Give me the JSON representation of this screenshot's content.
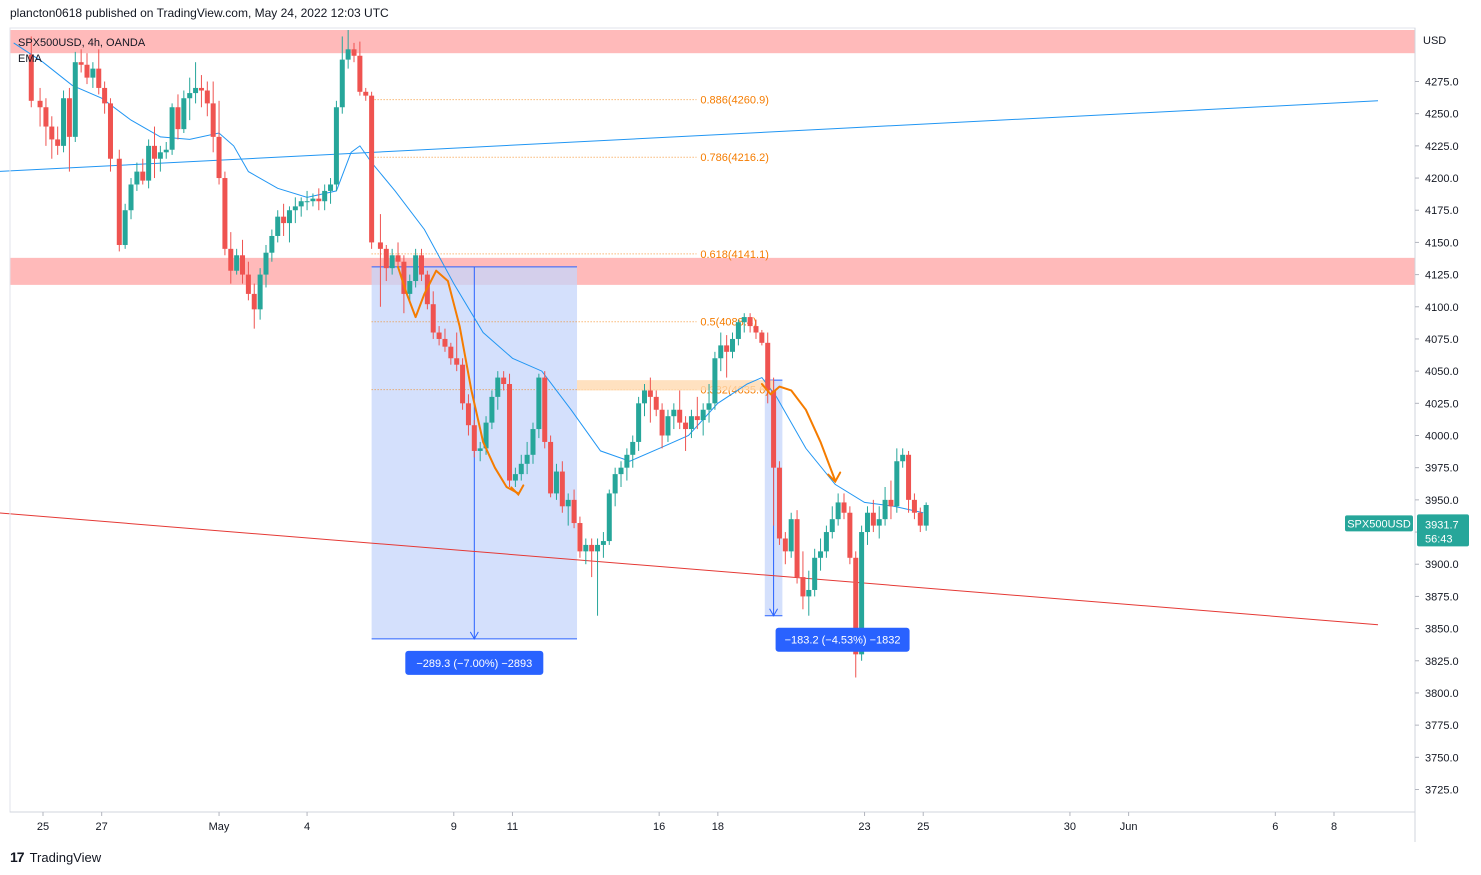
{
  "header": {
    "publisher": "plancton0618 published on TradingView.com, May 24, 2022 12:03 UTC"
  },
  "legend": {
    "symbol": "SPX500USD, 4h, OANDA",
    "indicator": "EMA"
  },
  "footer": {
    "brand": "TradingView",
    "logo": "17"
  },
  "colors": {
    "up": "#26a69a",
    "down": "#ef5350",
    "ema": "#2196f3",
    "zone": "#ffb3b3",
    "fib": "#f57c00",
    "measure": "#2962ff"
  },
  "chart_data": {
    "type": "candlestick",
    "symbol": "SPX500USD",
    "timeframe": "4h",
    "source": "OANDA",
    "y_axis": {
      "unit": "USD",
      "ticks": [
        4275.0,
        4250.0,
        4225.0,
        4200.0,
        4175.0,
        4150.0,
        4125.0,
        4100.0,
        4075.0,
        4050.0,
        4025.0,
        4000.0,
        3975.0,
        3950.0,
        3925.0,
        3900.0,
        3875.0,
        3850.0,
        3825.0,
        3800.0,
        3775.0,
        3750.0,
        3725.0
      ],
      "tick_labels": [
        "4275.0",
        "4250.0",
        "4225.0",
        "4200.0",
        "4175.0",
        "4150.0",
        "4125.0",
        "4100.0",
        "4075.0",
        "4050.0",
        "4025.0",
        "4000.0",
        "3975.0",
        "3950.0",
        "3925.0",
        "3900.0",
        "3875.0",
        "3850.0",
        "3825.0",
        "3800.0",
        "3775.0",
        "3750.0",
        "3725.0"
      ],
      "range": [
        3707,
        4322
      ]
    },
    "x_axis": {
      "labels": [
        "25",
        "27",
        "May",
        "4",
        "9",
        "11",
        "16",
        "18",
        "23",
        "25",
        "30",
        "Jun",
        "6",
        "8"
      ],
      "label_days": [
        -6,
        -4,
        0,
        3,
        8,
        10,
        15,
        17,
        22,
        24,
        29,
        31,
        36,
        38
      ],
      "range_days": [
        -7.6,
        39.5
      ]
    },
    "candles": [
      [
        -6.4,
        4296,
        4310,
        4255,
        4260
      ],
      [
        -6.1,
        4260,
        4270,
        4240,
        4255
      ],
      [
        -5.9,
        4255,
        4262,
        4225,
        4240
      ],
      [
        -5.7,
        4240,
        4248,
        4215,
        4230
      ],
      [
        -5.5,
        4230,
        4240,
        4218,
        4225
      ],
      [
        -5.3,
        4225,
        4268,
        4220,
        4262
      ],
      [
        -5.1,
        4262,
        4270,
        4205,
        4232
      ],
      [
        -4.9,
        4232,
        4298,
        4228,
        4290
      ],
      [
        -4.7,
        4290,
        4300,
        4282,
        4288
      ],
      [
        -4.5,
        4288,
        4297,
        4273,
        4278
      ],
      [
        -4.3,
        4278,
        4290,
        4270,
        4285
      ],
      [
        -4.1,
        4285,
        4300,
        4265,
        4270
      ],
      [
        -3.9,
        4270,
        4275,
        4250,
        4258
      ],
      [
        -3.7,
        4258,
        4262,
        4205,
        4215
      ],
      [
        -3.4,
        4215,
        4222,
        4143,
        4148
      ],
      [
        -3.2,
        4148,
        4180,
        4145,
        4175
      ],
      [
        -3.0,
        4175,
        4200,
        4168,
        4195
      ],
      [
        -2.8,
        4195,
        4212,
        4190,
        4205
      ],
      [
        -2.6,
        4205,
        4215,
        4195,
        4198
      ],
      [
        -2.4,
        4198,
        4230,
        4192,
        4225
      ],
      [
        -2.2,
        4225,
        4240,
        4200,
        4215
      ],
      [
        -2.0,
        4215,
        4225,
        4205,
        4220
      ],
      [
        -1.8,
        4220,
        4228,
        4215,
        4222
      ],
      [
        -1.6,
        4222,
        4258,
        4218,
        4255
      ],
      [
        -1.4,
        4255,
        4265,
        4230,
        4238
      ],
      [
        -1.2,
        4238,
        4268,
        4235,
        4262
      ],
      [
        -1.0,
        4262,
        4278,
        4245,
        4266
      ],
      [
        -0.8,
        4266,
        4290,
        4258,
        4270
      ],
      [
        -0.6,
        4270,
        4280,
        4255,
        4268
      ],
      [
        -0.4,
        4268,
        4275,
        4248,
        4258
      ],
      [
        -0.2,
        4258,
        4275,
        4220,
        4232
      ],
      [
        0.0,
        4232,
        4260,
        4195,
        4200
      ],
      [
        0.2,
        4200,
        4205,
        4140,
        4145
      ],
      [
        0.4,
        4145,
        4158,
        4118,
        4128
      ],
      [
        0.6,
        4128,
        4145,
        4125,
        4140
      ],
      [
        0.8,
        4140,
        4152,
        4118,
        4125
      ],
      [
        1.0,
        4125,
        4135,
        4105,
        4110
      ],
      [
        1.2,
        4110,
        4118,
        4083,
        4098
      ],
      [
        1.4,
        4098,
        4130,
        4090,
        4125
      ],
      [
        1.6,
        4125,
        4148,
        4115,
        4142
      ],
      [
        1.8,
        4142,
        4160,
        4135,
        4155
      ],
      [
        2.0,
        4155,
        4175,
        4150,
        4170
      ],
      [
        2.2,
        4170,
        4180,
        4155,
        4165
      ],
      [
        2.4,
        4165,
        4178,
        4150,
        4175
      ],
      [
        2.6,
        4175,
        4185,
        4165,
        4178
      ],
      [
        2.8,
        4178,
        4185,
        4170,
        4182
      ],
      [
        3.0,
        4182,
        4190,
        4175,
        4182
      ],
      [
        3.2,
        4182,
        4188,
        4178,
        4184
      ],
      [
        3.4,
        4184,
        4192,
        4175,
        4182
      ],
      [
        3.6,
        4182,
        4195,
        4175,
        4190
      ],
      [
        3.8,
        4190,
        4200,
        4180,
        4195
      ],
      [
        4.0,
        4195,
        4260,
        4190,
        4255
      ],
      [
        4.2,
        4255,
        4310,
        4250,
        4292
      ],
      [
        4.4,
        4292,
        4315,
        4285,
        4300
      ],
      [
        4.6,
        4300,
        4305,
        4290,
        4295
      ],
      [
        4.8,
        4295,
        4306,
        4264,
        4267
      ],
      [
        5.0,
        4267,
        4270,
        4260,
        4264
      ],
      [
        5.2,
        4264,
        4267,
        4145,
        4150
      ],
      [
        5.5,
        4150,
        4172,
        4100,
        4145
      ],
      [
        5.7,
        4145,
        4148,
        4120,
        4130
      ],
      [
        5.9,
        4130,
        4145,
        4125,
        4140
      ],
      [
        6.1,
        4140,
        4150,
        4130,
        4135
      ],
      [
        6.3,
        4135,
        4140,
        4095,
        4110
      ],
      [
        6.5,
        4110,
        4125,
        4105,
        4120
      ],
      [
        6.7,
        4120,
        4145,
        4115,
        4140
      ],
      [
        6.9,
        4140,
        4145,
        4120,
        4125
      ],
      [
        7.1,
        4125,
        4128,
        4098,
        4102
      ],
      [
        7.3,
        4102,
        4112,
        4075,
        4080
      ],
      [
        7.5,
        4080,
        4085,
        4070,
        4075
      ],
      [
        7.7,
        4075,
        4083,
        4065,
        4069
      ],
      [
        7.9,
        4069,
        4072,
        4055,
        4060
      ],
      [
        8.1,
        4060,
        4080,
        4050,
        4055
      ],
      [
        8.3,
        4055,
        4060,
        4020,
        4025
      ],
      [
        8.5,
        4025,
        4032,
        4000,
        4008
      ],
      [
        8.7,
        4008,
        4012,
        3983,
        3988
      ],
      [
        8.9,
        3988,
        3995,
        3980,
        3990
      ],
      [
        9.1,
        3990,
        4015,
        3985,
        4010
      ],
      [
        9.3,
        4010,
        4035,
        4005,
        4030
      ],
      [
        9.5,
        4030,
        4050,
        4020,
        4045
      ],
      [
        9.7,
        4045,
        4050,
        4035,
        4040
      ],
      [
        9.9,
        4040,
        4048,
        3960,
        3965
      ],
      [
        10.1,
        3965,
        3975,
        3960,
        3970
      ],
      [
        10.3,
        3970,
        3985,
        3965,
        3978
      ],
      [
        10.5,
        3978,
        3995,
        3970,
        3985
      ],
      [
        10.7,
        3985,
        4010,
        3978,
        4005
      ],
      [
        10.9,
        4005,
        4048,
        3998,
        4045
      ],
      [
        11.1,
        4045,
        4050,
        3990,
        3995
      ],
      [
        11.3,
        3995,
        4000,
        3952,
        3955
      ],
      [
        11.5,
        3955,
        3978,
        3950,
        3972
      ],
      [
        11.7,
        3972,
        3980,
        3940,
        3945
      ],
      [
        11.9,
        3945,
        3955,
        3930,
        3950
      ],
      [
        12.1,
        3950,
        3958,
        3928,
        3932
      ],
      [
        12.3,
        3932,
        3937,
        3905,
        3910
      ],
      [
        12.5,
        3910,
        3920,
        3900,
        3915
      ],
      [
        12.7,
        3915,
        3920,
        3890,
        3910
      ],
      [
        12.9,
        3910,
        3920,
        3860,
        3915
      ],
      [
        13.1,
        3915,
        3925,
        3905,
        3918
      ],
      [
        13.3,
        3918,
        3958,
        3915,
        3955
      ],
      [
        13.5,
        3955,
        3975,
        3945,
        3970
      ],
      [
        13.7,
        3970,
        3980,
        3960,
        3975
      ],
      [
        13.9,
        3975,
        3990,
        3965,
        3985
      ],
      [
        14.1,
        3985,
        4000,
        3975,
        3995
      ],
      [
        14.3,
        3995,
        4030,
        3988,
        4025
      ],
      [
        14.5,
        4025,
        4040,
        4015,
        4035
      ],
      [
        14.7,
        4035,
        4045,
        4010,
        4030
      ],
      [
        14.9,
        4030,
        4035,
        4015,
        4020
      ],
      [
        15.1,
        4020,
        4025,
        3990,
        4000
      ],
      [
        15.3,
        4000,
        4020,
        3995,
        4015
      ],
      [
        15.5,
        4015,
        4025,
        4005,
        4020
      ],
      [
        15.7,
        4020,
        4035,
        4005,
        4010
      ],
      [
        15.9,
        4010,
        4015,
        3988,
        4005
      ],
      [
        16.1,
        4005,
        4020,
        3998,
        4015
      ],
      [
        16.3,
        4015,
        4030,
        4005,
        4012
      ],
      [
        16.5,
        4012,
        4025,
        4000,
        4020
      ],
      [
        16.7,
        4020,
        4040,
        4010,
        4025
      ],
      [
        16.9,
        4025,
        4065,
        4020,
        4060
      ],
      [
        17.1,
        4060,
        4080,
        4050,
        4070
      ],
      [
        17.3,
        4070,
        4078,
        4045,
        4065
      ],
      [
        17.5,
        4065,
        4080,
        4060,
        4075
      ],
      [
        17.7,
        4075,
        4090,
        4070,
        4088
      ],
      [
        17.9,
        4088,
        4095,
        4080,
        4092
      ],
      [
        18.1,
        4092,
        4095,
        4080,
        4085
      ],
      [
        18.3,
        4085,
        4090,
        4075,
        4080
      ],
      [
        18.5,
        4080,
        4082,
        4070,
        4072
      ],
      [
        18.7,
        4072,
        4080,
        4025,
        4035
      ],
      [
        18.9,
        4035,
        4045,
        3930,
        3975
      ],
      [
        19.1,
        3975,
        3980,
        3915,
        3920
      ],
      [
        19.3,
        3920,
        3925,
        3900,
        3910
      ],
      [
        19.5,
        3910,
        3940,
        3905,
        3935
      ],
      [
        19.7,
        3935,
        3942,
        3885,
        3890
      ],
      [
        19.9,
        3890,
        3910,
        3865,
        3875
      ],
      [
        20.1,
        3875,
        3895,
        3860,
        3880
      ],
      [
        20.3,
        3880,
        3912,
        3875,
        3905
      ],
      [
        20.5,
        3905,
        3920,
        3895,
        3910
      ],
      [
        20.7,
        3910,
        3930,
        3905,
        3925
      ],
      [
        20.9,
        3925,
        3945,
        3920,
        3935
      ],
      [
        21.1,
        3935,
        3955,
        3930,
        3948
      ],
      [
        21.3,
        3948,
        3955,
        3935,
        3940
      ],
      [
        21.5,
        3940,
        3945,
        3900,
        3905
      ],
      [
        21.7,
        3905,
        3910,
        3812,
        3830
      ],
      [
        21.9,
        3830,
        3930,
        3825,
        3925
      ],
      [
        22.1,
        3925,
        3945,
        3915,
        3940
      ],
      [
        22.3,
        3940,
        3950,
        3925,
        3930
      ],
      [
        22.5,
        3930,
        3945,
        3920,
        3935
      ],
      [
        22.7,
        3935,
        3960,
        3930,
        3950
      ],
      [
        22.9,
        3950,
        3965,
        3935,
        3945
      ],
      [
        23.1,
        3945,
        3990,
        3940,
        3980
      ],
      [
        23.3,
        3980,
        3990,
        3975,
        3985
      ],
      [
        23.5,
        3985,
        3988,
        3940,
        3950
      ],
      [
        23.7,
        3950,
        3955,
        3935,
        3940
      ],
      [
        23.9,
        3940,
        3944,
        3925,
        3930
      ],
      [
        24.1,
        3930,
        3948,
        3926,
        3946
      ]
    ],
    "ema": [
      [
        -7.0,
        4305
      ],
      [
        -6.0,
        4290
      ],
      [
        -5.0,
        4272
      ],
      [
        -4.0,
        4262
      ],
      [
        -3.0,
        4245
      ],
      [
        -2.0,
        4232
      ],
      [
        -1.0,
        4230
      ],
      [
        0.0,
        4235
      ],
      [
        0.5,
        4225
      ],
      [
        1.0,
        4205
      ],
      [
        2.0,
        4192
      ],
      [
        3.0,
        4185
      ],
      [
        4.0,
        4190
      ],
      [
        4.5,
        4220
      ],
      [
        4.8,
        4225
      ],
      [
        5.2,
        4212
      ],
      [
        6.0,
        4190
      ],
      [
        7.0,
        4160
      ],
      [
        8.0,
        4118
      ],
      [
        9.0,
        4080
      ],
      [
        10.0,
        4060
      ],
      [
        11.0,
        4050
      ],
      [
        12.0,
        4020
      ],
      [
        13.0,
        3988
      ],
      [
        14.0,
        3980
      ],
      [
        15.0,
        3990
      ],
      [
        16.0,
        4000
      ],
      [
        17.0,
        4025
      ],
      [
        18.0,
        4040
      ],
      [
        18.5,
        4045
      ],
      [
        19.0,
        4030
      ],
      [
        20.0,
        3990
      ],
      [
        21.0,
        3962
      ],
      [
        22.0,
        3948
      ],
      [
        23.0,
        3945
      ],
      [
        24.0,
        3940
      ]
    ],
    "trendlines": [
      {
        "name": "blue-upper",
        "from": [
          -7.6,
          4205
        ],
        "to": [
          39.5,
          4260
        ]
      },
      {
        "name": "red-lower",
        "from": [
          -7.6,
          3940
        ],
        "to": [
          39.5,
          3853
        ]
      }
    ],
    "zones": [
      {
        "name": "top-resistance",
        "y1": 4297,
        "y2": 4315
      },
      {
        "name": "mid-resistance",
        "y1": 4117,
        "y2": 4138
      }
    ],
    "fib_levels": [
      {
        "ratio": "0.886",
        "value": 4260.9,
        "label": "0.886(4260.9)"
      },
      {
        "ratio": "0.786",
        "value": 4216.2,
        "label": "0.786(4216.2)"
      },
      {
        "ratio": "0.618",
        "value": 4141.1,
        "label": "0.618(4141.1)"
      },
      {
        "ratio": "0.5",
        "value": 4088.4,
        "label": "0.5(4088.4)"
      },
      {
        "ratio": "0.382",
        "value": 4035.6,
        "label": "0.382(4035.6)"
      }
    ],
    "measurements": [
      {
        "label": "−289.3 (−7.00%) −2893",
        "from_day": 5.2,
        "to_day": 12.2,
        "top": 4131,
        "bottom": 3842
      },
      {
        "label": "−183.2 (−4.53%) −1832",
        "from_day": 18.6,
        "to_day": 19.2,
        "top": 4043,
        "bottom": 3860
      }
    ],
    "price_tag": {
      "symbol": "SPX500USD",
      "price": "3931.7",
      "countdown": "56:43",
      "value": 3931.7
    }
  }
}
